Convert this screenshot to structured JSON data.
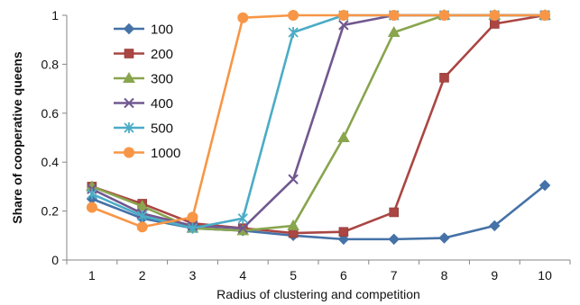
{
  "chart_data": {
    "type": "line",
    "x": [
      1,
      2,
      3,
      4,
      5,
      6,
      7,
      8,
      9,
      10
    ],
    "xlabel": "Radius of clustering and competition",
    "ylabel": "Share of cooperative queens",
    "ylim": [
      0,
      1
    ],
    "yticks": [
      "0",
      "0.2",
      "0.4",
      "0.6",
      "0.8",
      "1"
    ],
    "xticks": [
      "1",
      "2",
      "3",
      "4",
      "5",
      "6",
      "7",
      "8",
      "9",
      "10"
    ],
    "grid": false,
    "legend_position": "top-left",
    "series": [
      {
        "name": "100",
        "color": "#4572A7",
        "marker": "diamond",
        "values": [
          0.25,
          0.17,
          0.13,
          0.12,
          0.1,
          0.085,
          0.085,
          0.09,
          0.14,
          0.305
        ]
      },
      {
        "name": "200",
        "color": "#AA4643",
        "marker": "square",
        "values": [
          0.3,
          0.23,
          0.15,
          0.13,
          0.11,
          0.115,
          0.195,
          0.745,
          0.965,
          1.0
        ]
      },
      {
        "name": "300",
        "color": "#89A54E",
        "marker": "triangle",
        "values": [
          0.3,
          0.22,
          0.13,
          0.12,
          0.14,
          0.5,
          0.93,
          1.0,
          1.0,
          1.0
        ]
      },
      {
        "name": "400",
        "color": "#71588F",
        "marker": "x",
        "values": [
          0.29,
          0.19,
          0.14,
          0.13,
          0.33,
          0.96,
          1.0,
          1.0,
          1.0,
          1.0
        ]
      },
      {
        "name": "500",
        "color": "#4BACC6",
        "marker": "star",
        "values": [
          0.27,
          0.18,
          0.13,
          0.17,
          0.93,
          1.0,
          1.0,
          1.0,
          1.0,
          1.0
        ]
      },
      {
        "name": "1000",
        "color": "#F79646",
        "marker": "circle",
        "values": [
          0.215,
          0.135,
          0.175,
          0.99,
          1.0,
          1.0,
          1.0,
          1.0,
          1.0,
          1.0
        ]
      }
    ]
  }
}
